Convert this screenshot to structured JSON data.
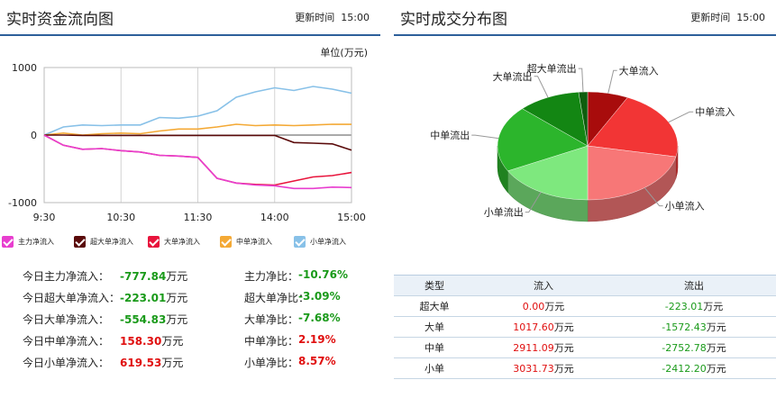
{
  "left": {
    "title": "实时资金流向图",
    "update_label": "更新时间",
    "update_time": "15:00",
    "unit": "单位(万元)"
  },
  "right": {
    "title": "实时成交分布图",
    "update_label": "更新时间",
    "update_time": "15:00"
  },
  "legend": [
    {
      "label": "主力净流入",
      "color": "#e83ecf"
    },
    {
      "label": "超大单净流入",
      "color": "#5a0a0a"
    },
    {
      "label": "大单净流入",
      "color": "#e8143c"
    },
    {
      "label": "中单净流入",
      "color": "#f4a935"
    },
    {
      "label": "小单净流入",
      "color": "#88c1e8"
    }
  ],
  "chart_data": [
    {
      "type": "line",
      "x_ticks": [
        "9:30",
        "10:30",
        "11:30",
        "14:00",
        "15:00"
      ],
      "y_ticks": [
        "1000",
        "0",
        "-1000"
      ],
      "ylim": [
        -1000,
        1000
      ],
      "grid": true,
      "x": [
        "9:30",
        "9:45",
        "10:00",
        "10:15",
        "10:30",
        "10:45",
        "11:00",
        "11:15",
        "11:30",
        "13:15",
        "13:30",
        "13:45",
        "14:00",
        "14:15",
        "14:30",
        "14:45",
        "15:00"
      ],
      "series": [
        {
          "name": "主力净流入",
          "color": "#e83ecf",
          "values": [
            0,
            -150,
            -210,
            -200,
            -230,
            -250,
            -300,
            -310,
            -330,
            -640,
            -710,
            -740,
            -750,
            -790,
            -790,
            -770,
            -777.84
          ]
        },
        {
          "name": "超大单净流入",
          "color": "#5a0a0a",
          "values": [
            0,
            0,
            -5,
            -5,
            -5,
            -5,
            -5,
            -5,
            -5,
            -5,
            -5,
            -5,
            -5,
            -110,
            -120,
            -130,
            -223.01
          ]
        },
        {
          "name": "大单净流入",
          "color": "#e8143c",
          "values": [
            0,
            -150,
            -210,
            -200,
            -230,
            -250,
            -300,
            -310,
            -330,
            -640,
            -710,
            -730,
            -740,
            -680,
            -620,
            -600,
            -554.83
          ]
        },
        {
          "name": "中单净流入",
          "color": "#f4a935",
          "values": [
            0,
            30,
            0,
            20,
            30,
            20,
            60,
            90,
            90,
            120,
            160,
            140,
            150,
            140,
            150,
            160,
            158.3
          ]
        },
        {
          "name": "小单净流入",
          "color": "#88c1e8",
          "values": [
            0,
            120,
            150,
            140,
            150,
            150,
            260,
            250,
            280,
            360,
            560,
            640,
            700,
            660,
            720,
            680,
            619.53
          ]
        }
      ]
    },
    {
      "type": "pie",
      "slices": [
        {
          "label": "大单流入",
          "value": 1017.6,
          "color": "#a80c0c"
        },
        {
          "label": "中单流入",
          "value": 2911.09,
          "color": "#f23535"
        },
        {
          "label": "小单流入",
          "value": 3031.73,
          "color": "#f77777"
        },
        {
          "label": "小单流出",
          "value": 2412.2,
          "color": "#7ee87e"
        },
        {
          "label": "中单流出",
          "value": 2752.78,
          "color": "#2cb52c"
        },
        {
          "label": "大单流出",
          "value": 1572.43,
          "color": "#138613"
        },
        {
          "label": "超大单流出",
          "value": 223.01,
          "color": "#0e5e0e"
        }
      ]
    }
  ],
  "stats": [
    {
      "label": "今日主力净流入：",
      "value": "-777.84",
      "unit": "万元",
      "rlabel": "主力净比：",
      "rvalue": "-10.76%",
      "sign": "neg",
      "rsign": "neg"
    },
    {
      "label": "今日超大单净流入：",
      "value": "-223.01",
      "unit": "万元",
      "rlabel": "超大单净比：",
      "rvalue": "-3.09%",
      "sign": "neg",
      "rsign": "neg"
    },
    {
      "label": "今日大单净流入：",
      "value": "-554.83",
      "unit": "万元",
      "rlabel": "大单净比：",
      "rvalue": "-7.68%",
      "sign": "neg",
      "rsign": "neg"
    },
    {
      "label": "今日中单净流入：",
      "value": "158.30",
      "unit": "万元",
      "rlabel": "中单净比：",
      "rvalue": "2.19%",
      "sign": "pos",
      "rsign": "pos"
    },
    {
      "label": "今日小单净流入：",
      "value": "619.53",
      "unit": "万元",
      "rlabel": "小单净比：",
      "rvalue": "8.57%",
      "sign": "pos",
      "rsign": "pos"
    }
  ],
  "table": {
    "headers": [
      "类型",
      "流入",
      "流出"
    ],
    "unit": "万元",
    "rows": [
      {
        "type": "超大单",
        "in": "0.00",
        "out": "-223.01"
      },
      {
        "type": "大单",
        "in": "1017.60",
        "out": "-1572.43"
      },
      {
        "type": "中单",
        "in": "2911.09",
        "out": "-2752.78"
      },
      {
        "type": "小单",
        "in": "3031.73",
        "out": "-2412.20"
      }
    ]
  }
}
